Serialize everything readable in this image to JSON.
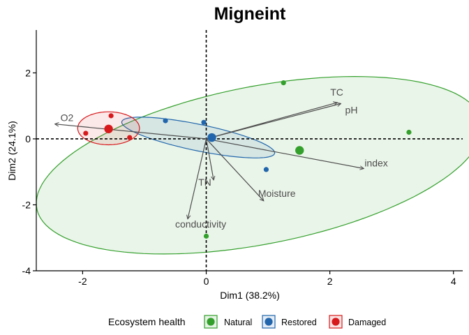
{
  "chart_data": {
    "type": "scatter",
    "subtype": "pca-biplot",
    "title": "Migneint",
    "xlabel": "Dim1 (38.2%)",
    "ylabel": "Dim2 (24.1%)",
    "xlim": [
      -2.75,
      4.15
    ],
    "ylim": [
      -4.0,
      3.3
    ],
    "xticks": [
      -2,
      0,
      2,
      4
    ],
    "yticks": [
      -4,
      -2,
      0,
      2
    ],
    "grid": false,
    "legend": {
      "title": "Ecosystem health",
      "position": "bottom",
      "entries": [
        "Natural",
        "Restored",
        "Damaged"
      ]
    },
    "series": [
      {
        "name": "Natural",
        "color": "#33a02c",
        "points": [
          [
            1.25,
            1.7
          ],
          [
            3.28,
            0.2
          ],
          [
            0.0,
            -2.95
          ]
        ],
        "centroid": [
          1.51,
          -0.35
        ],
        "ellipse": {
          "cx": 0.86,
          "cy": -0.8,
          "rx": 3.9,
          "ry": 2.25,
          "angle_deg": 27.6
        }
      },
      {
        "name": "Restored",
        "color": "#2166ac",
        "points": [
          [
            -0.66,
            0.55
          ],
          [
            -0.04,
            0.5
          ],
          [
            0.97,
            -0.93
          ]
        ],
        "centroid": [
          0.09,
          0.04
        ],
        "ellipse": {
          "cx": -0.13,
          "cy": 0.04,
          "rx": 1.33,
          "ry": 0.38,
          "angle_deg": -22.5
        }
      },
      {
        "name": "Damaged",
        "color": "#d7191c",
        "points": [
          [
            -1.95,
            0.17
          ],
          [
            -1.54,
            0.7
          ],
          [
            -1.24,
            0.04
          ]
        ],
        "centroid": [
          -1.58,
          0.3
        ],
        "ellipse": {
          "cx": -1.58,
          "cy": 0.32,
          "rx": 0.5,
          "ry": 0.5,
          "angle_deg": 0
        }
      }
    ],
    "variables": [
      {
        "name": "TC",
        "x": 2.12,
        "y": 1.1
      },
      {
        "name": "pH",
        "x": 2.18,
        "y": 1.07
      },
      {
        "name": "O2",
        "x": -2.45,
        "y": 0.45
      },
      {
        "name": "index",
        "x": 2.55,
        "y": -0.9
      },
      {
        "name": "TN",
        "x": 0.12,
        "y": -1.25
      },
      {
        "name": "Moisture",
        "x": 0.93,
        "y": -1.88
      },
      {
        "name": "conductivity",
        "x": -0.3,
        "y": -2.43
      }
    ]
  }
}
